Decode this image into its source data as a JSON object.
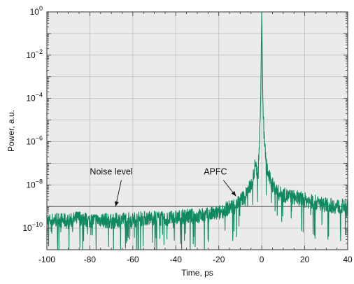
{
  "chart_data": {
    "type": "line",
    "xlabel": "Time, ps",
    "ylabel": "Power, a.u.",
    "xlim": [
      -100,
      40
    ],
    "ylim": [
      1e-11,
      1
    ],
    "yscale": "log",
    "grid": true,
    "x_ticks": [
      -100,
      -80,
      -60,
      -40,
      -20,
      0,
      20,
      40
    ],
    "x_tick_labels": [
      "-100",
      "-80",
      "-60",
      "-40",
      "-20",
      "0",
      "20",
      "40"
    ],
    "y_ticks": [
      {
        "value": 1e-10,
        "base": "10",
        "exp": "−10"
      },
      {
        "value": 1e-08,
        "base": "10",
        "exp": "−8"
      },
      {
        "value": 1e-06,
        "base": "10",
        "exp": "−6"
      },
      {
        "value": 0.0001,
        "base": "10",
        "exp": "−4"
      },
      {
        "value": 0.01,
        "base": "10",
        "exp": "−2"
      },
      {
        "value": 1,
        "base": "10",
        "exp": "0"
      }
    ],
    "series": [
      {
        "color": "#0f8a5f",
        "points": [
          [
            -100,
            2e-10
          ],
          [
            -95,
            2.5e-10
          ],
          [
            -90,
            2e-10
          ],
          [
            -85,
            3e-10
          ],
          [
            -80,
            2.2e-10
          ],
          [
            -75,
            2.5e-10
          ],
          [
            -70,
            2e-10
          ],
          [
            -65,
            2.6e-10
          ],
          [
            -60,
            2.4e-10
          ],
          [
            -55,
            2.8e-10
          ],
          [
            -50,
            3e-10
          ],
          [
            -45,
            2.5e-10
          ],
          [
            -40,
            3e-10
          ],
          [
            -35,
            3.5e-10
          ],
          [
            -30,
            3.5e-10
          ],
          [
            -25,
            4e-10
          ],
          [
            -20,
            5e-10
          ],
          [
            -17,
            7e-10
          ],
          [
            -14,
            1e-09
          ],
          [
            -11,
            1.5e-09
          ],
          [
            -8,
            3e-09
          ],
          [
            -6,
            6e-09
          ],
          [
            -4,
            2e-08
          ],
          [
            -3,
            1e-07
          ],
          [
            -2,
            3e-08
          ],
          [
            -1,
            1e-06
          ],
          [
            -0.5,
            0.0001
          ],
          [
            0,
            1
          ],
          [
            0.5,
            0.0001
          ],
          [
            1,
            3e-06
          ],
          [
            2,
            1e-07
          ],
          [
            3,
            3e-08
          ],
          [
            5,
            1e-08
          ],
          [
            8,
            4e-09
          ],
          [
            12,
            3e-09
          ],
          [
            16,
            2.5e-09
          ],
          [
            20,
            2e-09
          ],
          [
            25,
            1.5e-09
          ],
          [
            30,
            1.2e-09
          ],
          [
            35,
            1e-09
          ],
          [
            40,
            1e-09
          ]
        ]
      }
    ],
    "noise_level": 1e-09,
    "annotations": [
      {
        "text": "Noise level",
        "x": -80,
        "y": 3e-08,
        "arrow_to": [
          -68,
          1e-09
        ]
      },
      {
        "text": "APFC",
        "x": -27,
        "y": 3e-08,
        "arrow_to": [
          -12,
          3e-09
        ]
      }
    ]
  }
}
